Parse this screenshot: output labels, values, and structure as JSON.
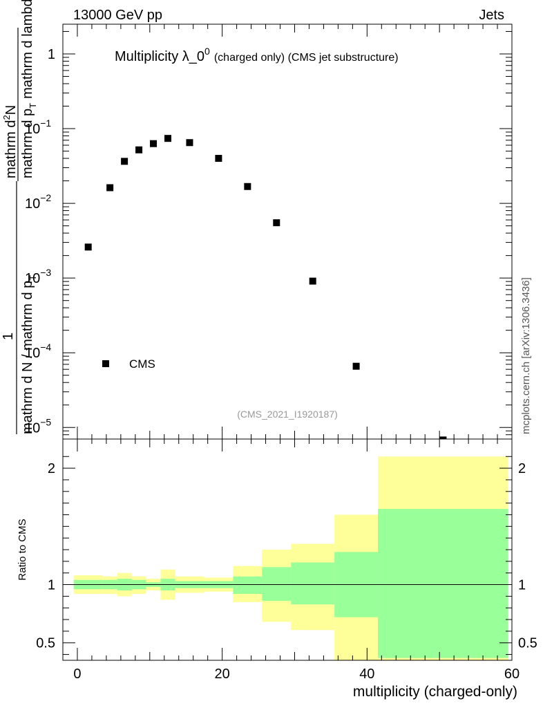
{
  "header": {
    "left_label": "13000 GeV pp",
    "right_label": "Jets"
  },
  "side_label": "mcplots.cern.ch [arXiv:1306.3436]",
  "chart_data": [
    {
      "type": "scatter",
      "title": "Multiplicity λ_0",
      "title_superscript": "0",
      "title_suffix": "(charged only) (CMS jet substructure)",
      "analysis_label": "(CMS_2021_I1920187)",
      "ylabel": {
        "numerator": "mathrm d²N",
        "numerator_text": "mathrm d",
        "numerator_sup": "2",
        "numerator_end": "N",
        "prefix": "1",
        "denominator_line1": "mathrm d N / mathrm d p",
        "denominator_line1_sub": "T",
        "denominator_line2": "mathrm d p",
        "denominator_line2_sub": "T",
        "denominator_line2_end": "mathrm d lambda",
        "full_text": "1 / (mathrm d N / mathrm d p_T mathrm d p_T mathrm d lambda) · mathrm d²N"
      },
      "yscale": "log",
      "ylim": [
        7e-06,
        2.5
      ],
      "xlim": [
        -2,
        60
      ],
      "yticks_major": [
        {
          "value": 1e-05,
          "base": "10",
          "exp": "−5"
        },
        {
          "value": 0.0001,
          "base": "10",
          "exp": "−4"
        },
        {
          "value": 0.001,
          "base": "10",
          "exp": "−3"
        },
        {
          "value": 0.01,
          "base": "10",
          "exp": "−2"
        },
        {
          "value": 0.1,
          "base": "10",
          "exp": "−1"
        },
        {
          "value": 1,
          "base": "1",
          "exp": ""
        }
      ],
      "legend": {
        "entries": [
          {
            "label": "CMS",
            "marker": "square"
          }
        ],
        "position": "bottom-left"
      },
      "series": [
        {
          "name": "CMS",
          "points": [
            {
              "x": 1.5,
              "y": 0.0026
            },
            {
              "x": 4.5,
              "y": 0.0162
            },
            {
              "x": 6.5,
              "y": 0.0365
            },
            {
              "x": 8.5,
              "y": 0.052
            },
            {
              "x": 10.5,
              "y": 0.063
            },
            {
              "x": 12.5,
              "y": 0.074
            },
            {
              "x": 15.5,
              "y": 0.065
            },
            {
              "x": 19.5,
              "y": 0.04
            },
            {
              "x": 23.5,
              "y": 0.0168
            },
            {
              "x": 27.5,
              "y": 0.0055
            },
            {
              "x": 32.5,
              "y": 0.00091
            },
            {
              "x": 38.5,
              "y": 6.6e-05
            },
            {
              "x": 50.5,
              "y": 6.8e-06
            }
          ]
        }
      ]
    },
    {
      "type": "area",
      "ylabel": "Ratio to CMS",
      "xlabel": "multiplicity (charged-only)",
      "xlim": [
        -2,
        60
      ],
      "ylim": [
        0.35,
        2.25
      ],
      "xticks": [
        {
          "value": 0,
          "label": "0"
        },
        {
          "value": 20,
          "label": "20"
        },
        {
          "value": 40,
          "label": "40"
        },
        {
          "value": 60,
          "label": "60"
        }
      ],
      "yticks": [
        {
          "value": 0.5,
          "label": "0.5"
        },
        {
          "value": 1,
          "label": "1"
        },
        {
          "value": 2,
          "label": "2"
        }
      ],
      "reference_line": 1.0,
      "band_colors": {
        "outer": "#ffff99",
        "inner": "#99ff99"
      },
      "bins": [
        {
          "x0": -0.5,
          "x1": 3.5,
          "outer": [
            0.92,
            1.08
          ],
          "inner": [
            0.96,
            1.04
          ]
        },
        {
          "x0": 3.5,
          "x1": 5.5,
          "outer": [
            0.92,
            1.07
          ],
          "inner": [
            0.96,
            1.04
          ]
        },
        {
          "x0": 5.5,
          "x1": 7.5,
          "outer": [
            0.9,
            1.1
          ],
          "inner": [
            0.95,
            1.05
          ]
        },
        {
          "x0": 7.5,
          "x1": 9.5,
          "outer": [
            0.92,
            1.07
          ],
          "inner": [
            0.96,
            1.04
          ]
        },
        {
          "x0": 9.5,
          "x1": 11.5,
          "outer": [
            0.95,
            1.05
          ],
          "inner": [
            0.98,
            1.02
          ]
        },
        {
          "x0": 11.5,
          "x1": 13.5,
          "outer": [
            0.87,
            1.13
          ],
          "inner": [
            0.95,
            1.05
          ]
        },
        {
          "x0": 13.5,
          "x1": 17.5,
          "outer": [
            0.93,
            1.07
          ],
          "inner": [
            0.97,
            1.03
          ]
        },
        {
          "x0": 17.5,
          "x1": 21.5,
          "outer": [
            0.94,
            1.06
          ],
          "inner": [
            0.97,
            1.03
          ]
        },
        {
          "x0": 21.5,
          "x1": 25.5,
          "outer": [
            0.85,
            1.16
          ],
          "inner": [
            0.92,
            1.07
          ]
        },
        {
          "x0": 25.5,
          "x1": 29.5,
          "outer": [
            0.68,
            1.3
          ],
          "inner": [
            0.86,
            1.15
          ]
        },
        {
          "x0": 29.5,
          "x1": 35.5,
          "outer": [
            0.61,
            1.35
          ],
          "inner": [
            0.83,
            1.19
          ]
        },
        {
          "x0": 35.5,
          "x1": 41.5,
          "outer": [
            0.35,
            1.6
          ],
          "inner": [
            0.72,
            1.28
          ]
        },
        {
          "x0": 41.5,
          "x1": 59.5,
          "outer": [
            0.35,
            2.1
          ],
          "inner": [
            0.37,
            1.65
          ]
        }
      ]
    }
  ]
}
